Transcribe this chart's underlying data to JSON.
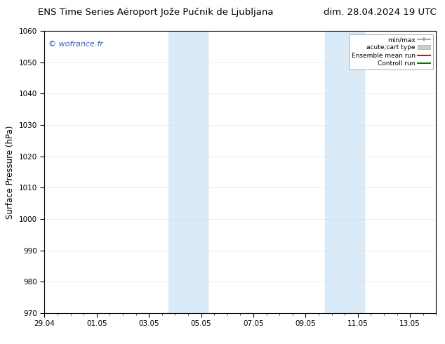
{
  "title_left": "ENS Time Series Aéroport Jože Pučnik de Ljubljana",
  "title_right": "dim. 28.04.2024 19 UTC",
  "ylabel": "Surface Pressure (hPa)",
  "ylim": [
    970,
    1060
  ],
  "yticks": [
    970,
    980,
    990,
    1000,
    1010,
    1020,
    1030,
    1040,
    1050,
    1060
  ],
  "xtick_labels": [
    "29.04",
    "01.05",
    "03.05",
    "05.05",
    "07.05",
    "09.05",
    "11.05",
    "13.05"
  ],
  "xtick_positions": [
    0,
    2,
    4,
    6,
    8,
    10,
    12,
    14
  ],
  "xlim": [
    0,
    15.0
  ],
  "shaded_regions": [
    {
      "xmin": 4.75,
      "xmax": 6.25,
      "color": "#daeaf7"
    },
    {
      "xmin": 10.75,
      "xmax": 12.25,
      "color": "#daeaf7"
    }
  ],
  "watermark": "© wofrance.fr",
  "watermark_color": "#3355bb",
  "legend_entries": [
    {
      "label": "min/max",
      "color": "#aaaaaa",
      "lw": 1.5
    },
    {
      "label": "acute;cart type",
      "color": "#cccccc",
      "lw": 6
    },
    {
      "label": "Ensemble mean run",
      "color": "red",
      "lw": 1.5
    },
    {
      "label": "Controll run",
      "color": "green",
      "lw": 1.5
    }
  ],
  "bg_color": "#ffffff",
  "plot_bg_color": "#ffffff",
  "spine_color": "#000000",
  "font_size_title": 9.5,
  "font_size_ticks": 7.5,
  "font_size_legend": 6.5,
  "font_size_ylabel": 8.5,
  "font_size_watermark": 8
}
